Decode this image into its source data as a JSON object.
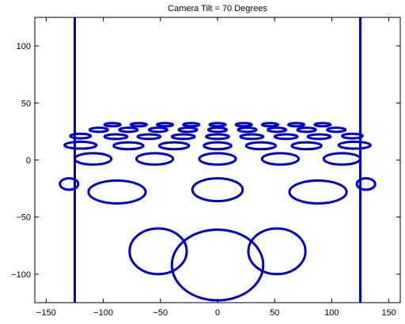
{
  "chart_data": {
    "type": "line",
    "title": "Camera Tilt = 70 Degrees",
    "xlabel": "",
    "ylabel": "",
    "xlim": [
      -160,
      160
    ],
    "ylim": [
      -125,
      125
    ],
    "xticks": [
      -150,
      -100,
      -50,
      0,
      50,
      100,
      150
    ],
    "yticks": [
      -100,
      -50,
      0,
      50,
      100
    ],
    "xtick_labels": [
      "−150",
      "−100",
      "−50",
      "0",
      "50",
      "100",
      "150"
    ],
    "ytick_labels": [
      "−100",
      "−50",
      "0",
      "50",
      "100"
    ],
    "grid": false,
    "line_color": "#0000cc",
    "frame_lines": [
      {
        "x": [
          -125,
          -125
        ],
        "y": [
          -125,
          125
        ]
      },
      {
        "x": [
          125,
          125
        ],
        "y": [
          -125,
          125
        ]
      }
    ],
    "ellipses": [
      {
        "cx": -52,
        "cy": -80,
        "rx": 25,
        "ry": 20
      },
      {
        "cx": 0,
        "cy": -92,
        "rx": 40,
        "ry": 31
      },
      {
        "cx": 52,
        "cy": -80,
        "rx": 25,
        "ry": 20
      },
      {
        "cx": -88,
        "cy": -28,
        "rx": 25,
        "ry": 10
      },
      {
        "cx": 0,
        "cy": -26,
        "rx": 22,
        "ry": 10
      },
      {
        "cx": 88,
        "cy": -28,
        "rx": 25,
        "ry": 10
      },
      {
        "cx": -130,
        "cy": -21,
        "rx": 8,
        "ry": 5
      },
      {
        "cx": 130,
        "cy": -21,
        "rx": 8,
        "ry": 5
      },
      {
        "cx": -109,
        "cy": 1,
        "rx": 16,
        "ry": 5
      },
      {
        "cx": -55,
        "cy": 1,
        "rx": 16,
        "ry": 5
      },
      {
        "cx": 0,
        "cy": 1,
        "rx": 16,
        "ry": 5
      },
      {
        "cx": 55,
        "cy": 1,
        "rx": 16,
        "ry": 5
      },
      {
        "cx": 109,
        "cy": 1,
        "rx": 16,
        "ry": 5
      },
      {
        "cx": -120,
        "cy": 13,
        "rx": 14,
        "ry": 3
      },
      {
        "cx": -78,
        "cy": 12.5,
        "rx": 13,
        "ry": 3
      },
      {
        "cx": -38,
        "cy": 12.5,
        "rx": 13,
        "ry": 3
      },
      {
        "cx": 0,
        "cy": 12.5,
        "rx": 12,
        "ry": 3
      },
      {
        "cx": 38,
        "cy": 12.5,
        "rx": 13,
        "ry": 3
      },
      {
        "cx": 78,
        "cy": 12.5,
        "rx": 13,
        "ry": 3
      },
      {
        "cx": 120,
        "cy": 13,
        "rx": 14,
        "ry": 3
      },
      {
        "cx": -120,
        "cy": 21,
        "rx": 9,
        "ry": 2
      },
      {
        "cx": -89,
        "cy": 20.5,
        "rx": 10,
        "ry": 2
      },
      {
        "cx": -60,
        "cy": 20.5,
        "rx": 10,
        "ry": 2
      },
      {
        "cx": -30,
        "cy": 20.5,
        "rx": 10,
        "ry": 2
      },
      {
        "cx": 0,
        "cy": 20.5,
        "rx": 10,
        "ry": 2
      },
      {
        "cx": 30,
        "cy": 20.5,
        "rx": 10,
        "ry": 2
      },
      {
        "cx": 60,
        "cy": 20.5,
        "rx": 10,
        "ry": 2
      },
      {
        "cx": 89,
        "cy": 20.5,
        "rx": 10,
        "ry": 2
      },
      {
        "cx": 118,
        "cy": 21,
        "rx": 9,
        "ry": 2
      },
      {
        "cx": -104,
        "cy": 26.5,
        "rx": 8,
        "ry": 1.8
      },
      {
        "cx": -78,
        "cy": 26.5,
        "rx": 8,
        "ry": 1.8
      },
      {
        "cx": -52,
        "cy": 26.5,
        "rx": 8,
        "ry": 1.8
      },
      {
        "cx": -26,
        "cy": 26.5,
        "rx": 8,
        "ry": 1.8
      },
      {
        "cx": 0,
        "cy": 26.5,
        "rx": 8,
        "ry": 1.8
      },
      {
        "cx": 26,
        "cy": 26.5,
        "rx": 8,
        "ry": 1.8
      },
      {
        "cx": 52,
        "cy": 26.5,
        "rx": 8,
        "ry": 1.8
      },
      {
        "cx": 78,
        "cy": 26.5,
        "rx": 8,
        "ry": 1.8
      },
      {
        "cx": 104,
        "cy": 26.5,
        "rx": 8,
        "ry": 1.8
      },
      {
        "cx": -92,
        "cy": 31,
        "rx": 7,
        "ry": 1.4
      },
      {
        "cx": -69,
        "cy": 31,
        "rx": 7,
        "ry": 1.4
      },
      {
        "cx": -46,
        "cy": 31,
        "rx": 7,
        "ry": 1.4
      },
      {
        "cx": -23,
        "cy": 31,
        "rx": 7,
        "ry": 1.4
      },
      {
        "cx": 0,
        "cy": 31,
        "rx": 7,
        "ry": 1.4
      },
      {
        "cx": 23,
        "cy": 31,
        "rx": 7,
        "ry": 1.4
      },
      {
        "cx": 46,
        "cy": 31,
        "rx": 7,
        "ry": 1.4
      },
      {
        "cx": 69,
        "cy": 31,
        "rx": 7,
        "ry": 1.4
      },
      {
        "cx": 92,
        "cy": 31,
        "rx": 7,
        "ry": 1.4
      }
    ]
  }
}
